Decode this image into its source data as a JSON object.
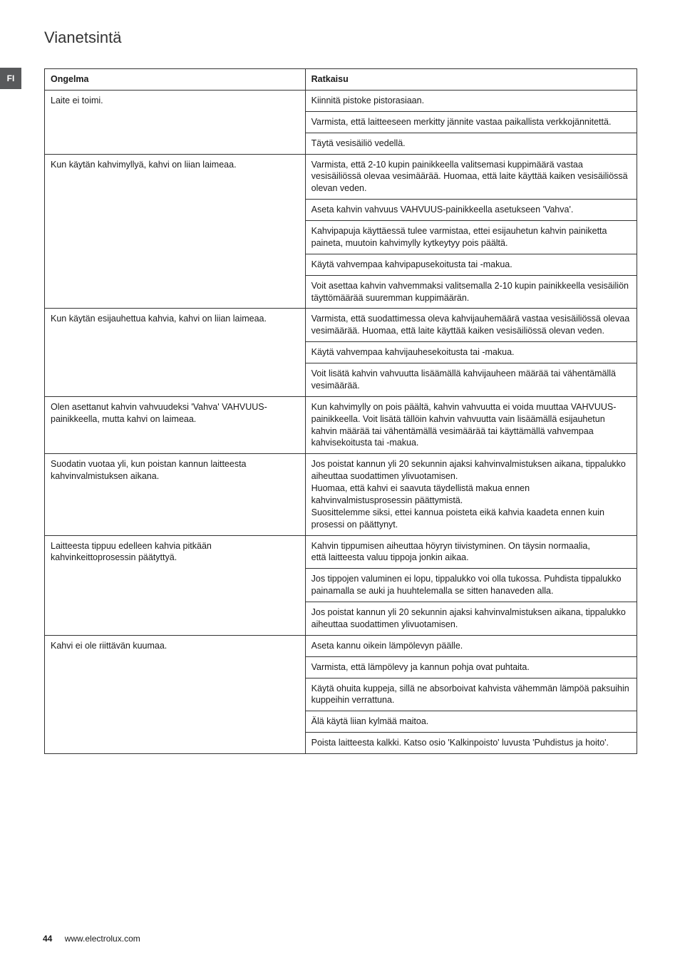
{
  "heading": "Vianetsintä",
  "lang_tab": "FI",
  "table": {
    "header": {
      "problem": "Ongelma",
      "solution": "Ratkaisu"
    },
    "groups": [
      {
        "problem": "Laite ei toimi.",
        "solutions": [
          "Kiinnitä pistoke pistorasiaan.",
          "Varmista, että laitteeseen merkitty jännite vastaa paikallista verkkojännitettä.",
          "Täytä vesisäiliö vedellä."
        ]
      },
      {
        "problem": "Kun käytän kahvimyllyä, kahvi on liian laimeaa.",
        "solutions": [
          "Varmista, että 2-10 kupin painikkeella valitsemasi kuppimäärä vastaa vesisäiliössä olevaa vesimäärää. Huomaa, että laite käyttää kaiken vesisäiliössä olevan veden.",
          "Aseta kahvin vahvuus VAHVUUS-painikkeella asetukseen 'Vahva'.",
          "Kahvipapuja käyttäessä tulee varmistaa, ettei esijauhetun kahvin painiketta paineta, muutoin kahvimylly kytkeytyy pois päältä.",
          "Käytä vahvempaa kahvipapusekoitusta tai -makua.",
          "Voit asettaa kahvin vahvemmaksi valitsemalla 2-10 kupin painikkeella vesisäiliön täyttömäärää suuremman kuppimäärän."
        ]
      },
      {
        "problem": "Kun käytän esijauhettua kahvia, kahvi on liian laimeaa.",
        "solutions": [
          "Varmista, että suodattimessa oleva kahvijauhemäärä vastaa vesisäiliössä olevaa vesimäärää. Huomaa, että laite käyttää kaiken vesisäiliössä olevan veden.",
          "Käytä vahvempaa kahvijauhesekoitusta tai -makua.",
          "Voit lisätä kahvin vahvuutta lisäämällä kahvijauheen määrää tai vähentämällä vesimäärää."
        ]
      },
      {
        "problem": "Olen asettanut kahvin vahvuudeksi 'Vahva' VAHVUUS-painikkeella, mutta kahvi on laimeaa.",
        "solutions": [
          "Kun kahvimylly on pois päältä, kahvin vahvuutta ei voida muuttaa VAHVUUS-painikkeella. Voit lisätä tällöin kahvin vahvuutta vain lisäämällä esijauhetun kahvin määrää tai vähentämällä vesimäärää tai käyttämällä vahvempaa kahvisekoitusta tai -makua."
        ]
      },
      {
        "problem": "Suodatin vuotaa yli, kun poistan kannun laitteesta kahvinvalmistuksen aikana.",
        "solutions": [
          "Jos poistat kannun yli 20 sekunnin ajaksi kahvinvalmistuksen aikana, tippalukko aiheuttaa suodattimen ylivuotamisen.\nHuomaa, että kahvi ei saavuta täydellistä makua ennen kahvinvalmistusprosessin päättymistä.\nSuosittelemme siksi, ettei kannua poisteta eikä kahvia kaadeta ennen kuin prosessi on päättynyt."
        ]
      },
      {
        "problem": "Laitteesta tippuu edelleen kahvia pitkään kahvinkeittoprosessin päätyttyä.",
        "solutions": [
          "Kahvin tippumisen aiheuttaa höyryn tiivistyminen.  On täysin normaalia,\nettä laitteesta valuu tippoja jonkin aikaa.",
          "Jos tippojen valuminen ei lopu, tippalukko voi olla tukossa. Puhdista tippalukko painamalla se auki ja huuhtelemalla se sitten hanaveden alla.",
          "Jos poistat kannun yli 20 sekunnin ajaksi kahvinvalmistuksen aikana, tippalukko aiheuttaa suodattimen ylivuotamisen."
        ]
      },
      {
        "problem": "Kahvi ei ole riittävän kuumaa.",
        "solutions": [
          "Aseta kannu oikein lämpölevyn päälle.",
          "Varmista, että lämpölevy ja kannun pohja ovat puhtaita.",
          "Käytä ohuita kuppeja, sillä ne absorboivat kahvista vähemmän lämpöä paksuihin kuppeihin verrattuna.",
          "Älä käytä liian kylmää maitoa.",
          "Poista laitteesta kalkki. Katso osio 'Kalkinpoisto' luvusta 'Puhdistus ja hoito'."
        ]
      }
    ]
  },
  "footer": {
    "page": "44",
    "url": "www.electrolux.com"
  }
}
